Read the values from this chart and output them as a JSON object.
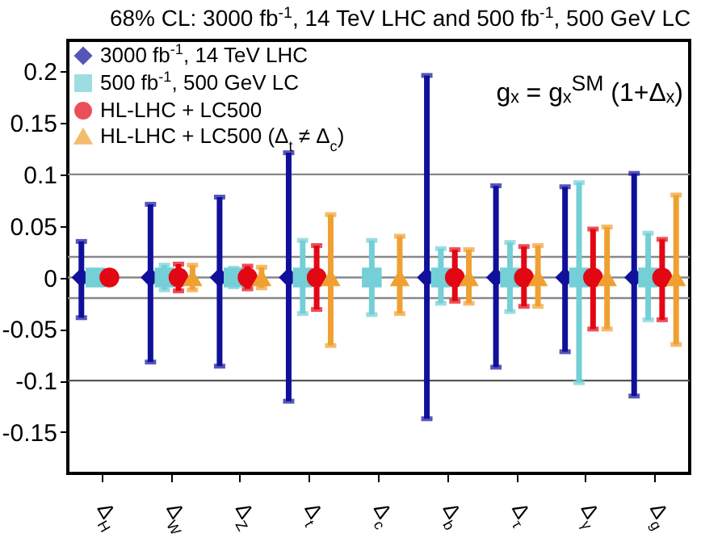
{
  "chart_data": {
    "type": "scatter",
    "title": "68% CL: 3000 fb$^{-1}$, 14 TeV LHC and 500 fb$^{-1}$, 500 GeV LC",
    "annotations": [
      "gₓ = gₓ$^{SM}$ (1+Δₓ)"
    ],
    "categories": [
      "Δ$_{H}$",
      "Δ$_{W}$",
      "Δ$_{Z}$",
      "Δ$_{t}$",
      "Δ$_{c}$",
      "Δ$_{b}$",
      "Δ$_{τ}$",
      "Δ$_{γ}$",
      "Δ$_{g}$"
    ],
    "series": [
      {
        "name": "3000 fb$^{-1}$, 14 TeV LHC",
        "color": "#10109a",
        "marker": "diamond",
        "values": [
          0,
          0,
          0,
          0,
          null,
          0,
          0,
          0,
          0
        ],
        "errors": [
          [
            -0.039,
            0.035
          ],
          [
            -0.082,
            0.071
          ],
          [
            -0.086,
            0.078
          ],
          [
            -0.12,
            0.121
          ],
          null,
          [
            -0.137,
            0.196
          ],
          [
            -0.087,
            0.089
          ],
          [
            -0.072,
            0.088
          ],
          [
            -0.115,
            0.101
          ]
        ]
      },
      {
        "name": "500 fb$^{-1}$, 500 GeV LC",
        "color": "#74cfd6",
        "marker": "square",
        "values": [
          0,
          0,
          0,
          0,
          0,
          0,
          0,
          0,
          0
        ],
        "errors": [
          null,
          [
            -0.012,
            0.012
          ],
          [
            -0.009,
            0.009
          ],
          [
            -0.035,
            0.036
          ],
          [
            -0.036,
            0.036
          ],
          [
            -0.025,
            0.028
          ],
          [
            -0.033,
            0.034
          ],
          [
            -0.102,
            0.092
          ],
          [
            -0.041,
            0.043
          ]
        ]
      },
      {
        "name": "HL-LHC + LC500",
        "color": "#e30613",
        "marker": "circle",
        "values": [
          0,
          0,
          0,
          0,
          null,
          0,
          0,
          0,
          0
        ],
        "errors": [
          null,
          [
            -0.013,
            0.013
          ],
          [
            -0.011,
            0.011
          ],
          [
            -0.031,
            0.031
          ],
          null,
          [
            -0.023,
            0.027
          ],
          [
            -0.028,
            0.03
          ],
          [
            -0.05,
            0.047
          ],
          [
            -0.041,
            0.037
          ]
        ]
      },
      {
        "name": "HL-LHC + LC500 (Δ$_{t}$ ≠ Δ$_{c}$)",
        "color": "#f0a030",
        "marker": "triangle",
        "values": [
          null,
          0,
          0,
          0,
          0,
          0,
          0,
          0,
          0
        ],
        "errors": [
          null,
          [
            -0.012,
            0.012
          ],
          [
            -0.01,
            0.01
          ],
          [
            -0.066,
            0.061
          ],
          [
            -0.035,
            0.04
          ],
          [
            -0.025,
            0.027
          ],
          [
            -0.028,
            0.031
          ],
          [
            -0.05,
            0.049
          ],
          [
            -0.065,
            0.08
          ]
        ]
      }
    ],
    "ylim": [
      -0.19,
      0.23
    ],
    "yticks": [
      -0.15,
      -0.1,
      -0.05,
      0,
      0.05,
      0.1,
      0.15,
      0.2
    ],
    "grid": false,
    "legend": "top left",
    "ref_lines": [
      {
        "axis": "y",
        "value": 0.1,
        "color": "#888888"
      },
      {
        "axis": "y",
        "value": 0.02,
        "color": "#888888"
      },
      {
        "axis": "y",
        "value": 0,
        "color": "#888888"
      },
      {
        "axis": "y",
        "value": -0.02,
        "color": "#888888"
      },
      {
        "axis": "y",
        "value": -0.1,
        "color": "#555555"
      }
    ]
  }
}
